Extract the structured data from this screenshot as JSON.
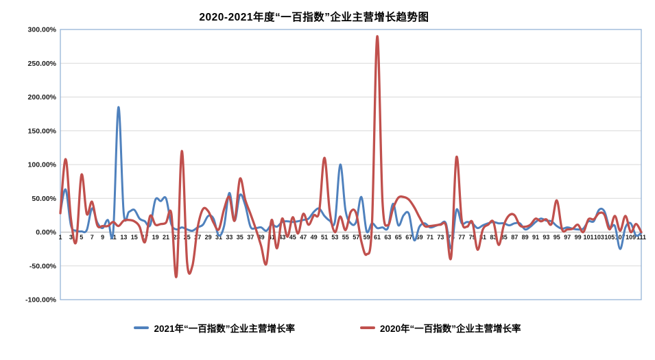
{
  "title": "2020-2021年度“一百指数”企业主营增长趋势图",
  "legend": [
    {
      "label": "2021年“一百指数”企业主营增长率",
      "color": "#4F81BD"
    },
    {
      "label": "2020年“一百指数”企业主营增长率",
      "color": "#C0504D"
    }
  ],
  "colors": {
    "series_2021": "#4F81BD",
    "series_2020": "#C0504D",
    "gridline": "#D9D9D9",
    "zero_axis": "#B3B3B3",
    "plot_border": "#95B3D7",
    "label_text": "#1a1a1a"
  },
  "chart_data": {
    "type": "line",
    "smooth": true,
    "grid": true,
    "legend_position": "bottom",
    "ylim": [
      -100,
      300
    ],
    "y_tick_step": 50,
    "y_tick_labels": [
      "300.00%",
      "250.00%",
      "200.00%",
      "150.00%",
      "100.00%",
      "50.00%",
      "0.00%",
      "-50.00%",
      "-100.00%"
    ],
    "x_tick_labels": [
      "1",
      "3",
      "5",
      "7",
      "9",
      "11",
      "13",
      "15",
      "17",
      "19",
      "21",
      "23",
      "25",
      "27",
      "29",
      "31",
      "33",
      "35",
      "37",
      "39",
      "41",
      "43",
      "45",
      "47",
      "49",
      "51",
      "53",
      "55",
      "57",
      "59",
      "61",
      "63",
      "65",
      "67",
      "69",
      "71",
      "73",
      "75",
      "77",
      "79",
      "81",
      "83",
      "85",
      "87",
      "89",
      "91",
      "93",
      "95",
      "97",
      "99",
      "101",
      "103",
      "105",
      "107",
      "109",
      "111"
    ],
    "x": [
      1,
      2,
      3,
      4,
      5,
      6,
      7,
      8,
      9,
      10,
      11,
      12,
      13,
      14,
      15,
      16,
      17,
      18,
      19,
      20,
      21,
      22,
      23,
      24,
      25,
      26,
      27,
      28,
      29,
      30,
      31,
      32,
      33,
      34,
      35,
      36,
      37,
      38,
      39,
      40,
      41,
      42,
      43,
      44,
      45,
      46,
      47,
      48,
      49,
      50,
      51,
      52,
      53,
      54,
      55,
      56,
      57,
      58,
      59,
      60,
      61,
      62,
      63,
      64,
      65,
      66,
      67,
      68,
      69,
      70,
      71,
      72,
      73,
      74,
      75,
      76,
      77,
      78,
      79,
      80,
      81,
      82,
      83,
      84,
      85,
      86,
      87,
      88,
      89,
      90,
      91,
      92,
      93,
      94,
      95,
      96,
      97,
      98,
      99,
      100,
      101,
      102,
      103,
      104,
      105,
      106,
      107,
      108,
      109,
      110,
      111
    ],
    "series": [
      {
        "name": "2021年“一百指数”企业主营增长率",
        "color": "#4F81BD",
        "values": [
          30,
          63,
          10,
          2,
          1,
          3,
          35,
          14,
          6,
          18,
          0,
          185,
          28,
          30,
          33,
          20,
          16,
          10,
          48,
          46,
          50,
          12,
          4,
          7,
          4,
          2,
          7,
          11,
          24,
          20,
          -5,
          9,
          58,
          17,
          55,
          40,
          8,
          6,
          7,
          2,
          11,
          8,
          15,
          16,
          15,
          16,
          18,
          20,
          30,
          35,
          24,
          17,
          16,
          100,
          32,
          13,
          15,
          52,
          1,
          13,
          6,
          7,
          6,
          42,
          10,
          25,
          27,
          -12,
          8,
          13,
          7,
          9,
          12,
          13,
          -24,
          33,
          13,
          15,
          13,
          6,
          10,
          13,
          15,
          13,
          13,
          10,
          13,
          13,
          4,
          8,
          15,
          20,
          17,
          16,
          9,
          5,
          7,
          5,
          4,
          5,
          16,
          16,
          33,
          31,
          7,
          9,
          -25,
          7,
          13,
          -5,
          -1
        ]
      },
      {
        "name": "2020年“一百指数”企业主营增长率",
        "color": "#C0504D",
        "values": [
          28,
          108,
          20,
          -14,
          85,
          27,
          45,
          10,
          9,
          9,
          15,
          9,
          17,
          18,
          16,
          8,
          -15,
          24,
          11,
          12,
          14,
          28,
          -65,
          120,
          -45,
          -50,
          7,
          34,
          31,
          14,
          4,
          34,
          52,
          17,
          79,
          48,
          27,
          5,
          -20,
          -47,
          18,
          -24,
          20,
          -7,
          22,
          -2,
          27,
          11,
          25,
          30,
          110,
          31,
          0,
          23,
          3,
          30,
          28,
          -14,
          -33,
          10,
          290,
          45,
          10,
          35,
          51,
          52,
          48,
          37,
          22,
          9,
          9,
          10,
          11,
          10,
          -37,
          111,
          18,
          8,
          15,
          -26,
          4,
          11,
          15,
          -19,
          11,
          25,
          25,
          10,
          8,
          11,
          20,
          16,
          19,
          12,
          47,
          4,
          4,
          5,
          11,
          0,
          19,
          19,
          28,
          26,
          4,
          24,
          2,
          24,
          0,
          12,
          0
        ]
      }
    ]
  }
}
